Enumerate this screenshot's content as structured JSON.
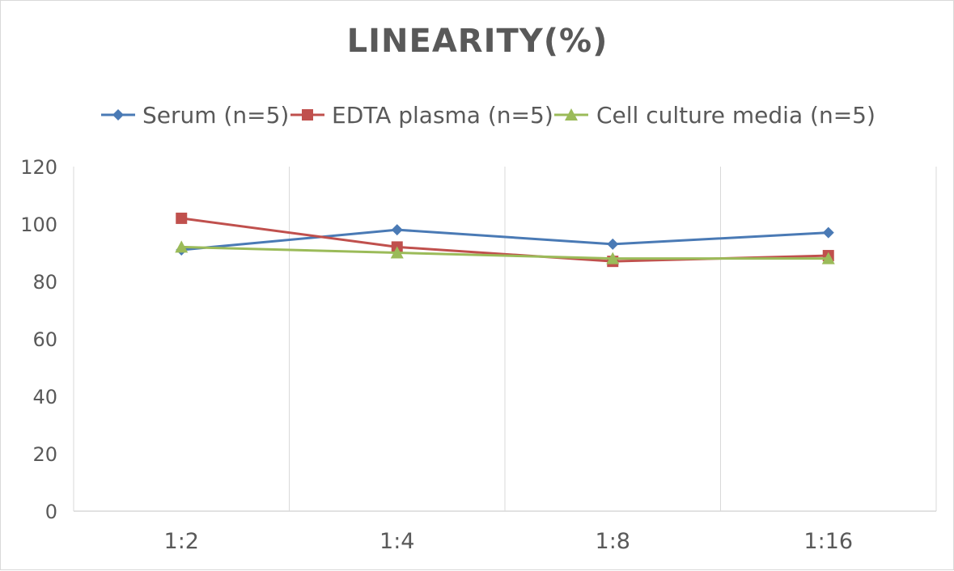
{
  "chart_data": {
    "type": "line",
    "title": "LINEARITY(%)",
    "categories": [
      "1:2",
      "1:4",
      "1:8",
      "1:16"
    ],
    "ylim": [
      0,
      120
    ],
    "yticks": [
      0,
      20,
      40,
      60,
      80,
      100,
      120
    ],
    "grid": "vertical",
    "legend_position": "top",
    "series": [
      {
        "name": "Serum (n=5)",
        "values": [
          91,
          98,
          93,
          97
        ],
        "color": "#4a7ab5",
        "marker": "diamond"
      },
      {
        "name": "EDTA plasma (n=5)",
        "values": [
          102,
          92,
          87,
          89
        ],
        "color": "#c0504d",
        "marker": "square"
      },
      {
        "name": "Cell culture media (n=5)",
        "values": [
          92,
          90,
          88,
          88
        ],
        "color": "#9bbb59",
        "marker": "triangle"
      }
    ]
  }
}
